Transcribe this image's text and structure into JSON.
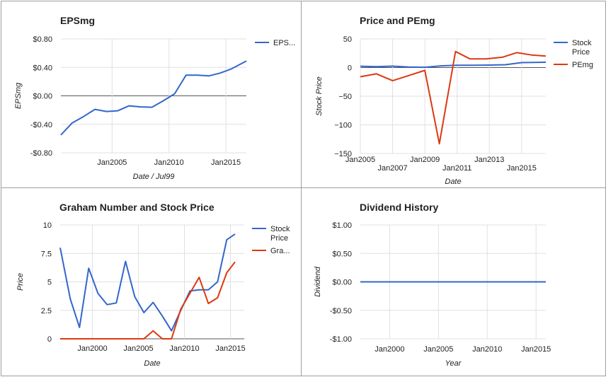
{
  "colors": {
    "blue": "#3366cc",
    "red": "#dc3912",
    "grid": "#e0e0e0",
    "zero": "#555555",
    "text": "#222222"
  },
  "chart_data": [
    {
      "type": "line",
      "title": "EPSmg",
      "xlabel": "Date / Jul99",
      "ylabel": "EPSmg",
      "ylim": [
        -0.8,
        0.8
      ],
      "yticks": [
        0.8,
        0.4,
        0.0,
        -0.4,
        -0.8
      ],
      "ytick_labels": [
        "$0.80",
        "$0.40",
        "$0.00",
        "-$0.40",
        "-$0.80"
      ],
      "xlim": [
        2000.5,
        2016.8
      ],
      "xticks": [
        2005,
        2010,
        2015
      ],
      "xtick_labels": [
        "Jan2005",
        "Jan2010",
        "Jan2015"
      ],
      "legend": "right",
      "series": [
        {
          "name": "EPS...",
          "color": "#3366cc",
          "x": [
            2000.5,
            2001.5,
            2002.5,
            2003.5,
            2004.5,
            2005.5,
            2006.5,
            2007.5,
            2008.5,
            2009.5,
            2010.5,
            2011.5,
            2012.5,
            2013.5,
            2014.5,
            2015.5,
            2016.8
          ],
          "y": [
            -0.55,
            -0.38,
            -0.29,
            -0.19,
            -0.22,
            -0.21,
            -0.14,
            -0.155,
            -0.16,
            -0.07,
            0.03,
            0.29,
            0.29,
            0.28,
            0.32,
            0.38,
            0.49
          ]
        }
      ]
    },
    {
      "type": "line",
      "title": "Price and PEmg",
      "xlabel": "Date",
      "ylabel": "Stock Price",
      "ylim": [
        -150,
        50
      ],
      "yticks": [
        50,
        0,
        -50,
        -100,
        -150
      ],
      "ytick_labels": [
        "50",
        "0",
        "−50",
        "−100",
        "−150"
      ],
      "xlim": [
        2005,
        2016.5
      ],
      "xticks": [
        2005,
        2007,
        2009,
        2011,
        2013,
        2015
      ],
      "xtick_labels": [
        "Jan2005",
        "Jan2007",
        "Jan2009",
        "Jan2011",
        "Jan2013",
        "Jan2015"
      ],
      "legend": "right",
      "series": [
        {
          "name": "Stock Price",
          "color": "#3366cc",
          "x": [
            2005,
            2006,
            2007,
            2008,
            2009,
            2010,
            2011,
            2012,
            2013,
            2014,
            2015,
            2016.5
          ],
          "y": [
            2.3,
            1.5,
            2.5,
            1,
            0.5,
            3,
            4,
            4,
            4.3,
            5,
            8.7,
            9.2
          ]
        },
        {
          "name": "PEmg",
          "color": "#dc3912",
          "x": [
            2005,
            2006,
            2007,
            2008,
            2009,
            2009.9,
            2010.9,
            2011.8,
            2012.8,
            2013.8,
            2014.7,
            2015.6,
            2016.5
          ],
          "y": [
            -16,
            -11,
            -23,
            -14,
            -5,
            -133,
            28,
            15,
            15,
            18,
            26,
            22,
            20
          ]
        }
      ]
    },
    {
      "type": "line",
      "title": "Graham Number and Stock Price",
      "xlabel": "Date",
      "ylabel": "Price",
      "ylim": [
        0,
        10
      ],
      "yticks": [
        10,
        7.5,
        5,
        2.5,
        0
      ],
      "ytick_labels": [
        "10",
        "7.5",
        "5",
        "2.5",
        "0"
      ],
      "xlim": [
        1996.5,
        2016.5
      ],
      "xticks": [
        2000,
        2005,
        2010,
        2015
      ],
      "xtick_labels": [
        "Jan2000",
        "Jan2005",
        "Jan2010",
        "Jan2015"
      ],
      "legend": "right",
      "series": [
        {
          "name": "Stock Price",
          "color": "#3366cc",
          "x": [
            1996.5,
            1997.6,
            1998.6,
            1999.6,
            2000.6,
            2001.6,
            2002.6,
            2003.6,
            2004.6,
            2005.6,
            2006.6,
            2007.6,
            2008.6,
            2009.6,
            2010.6,
            2011.6,
            2012.6,
            2013.6,
            2014.6,
            2015.5
          ],
          "y": [
            8,
            3.5,
            1,
            6.2,
            4,
            3,
            3.15,
            6.8,
            3.7,
            2.3,
            3.2,
            2,
            0.7,
            2.5,
            4.2,
            4.3,
            4.3,
            5,
            8.7,
            9.2
          ]
        },
        {
          "name": "Gra...",
          "color": "#dc3912",
          "x": [
            1996.5,
            1997.6,
            1998.6,
            1999.6,
            2000.6,
            2001.6,
            2002.6,
            2003.6,
            2004.6,
            2005.6,
            2006.6,
            2007.6,
            2008.6,
            2009.6,
            2010.6,
            2011.6,
            2012.6,
            2013.6,
            2014.6,
            2015.5
          ],
          "y": [
            0,
            0,
            0,
            0,
            0,
            0,
            0,
            0,
            0,
            0,
            0.7,
            0,
            0,
            2.6,
            4,
            5.4,
            3.1,
            3.6,
            5.8,
            6.75
          ]
        }
      ]
    },
    {
      "type": "line",
      "title": "Dividend History",
      "xlabel": "Year",
      "ylabel": "Dividend",
      "ylim": [
        -1,
        1
      ],
      "yticks": [
        1,
        0.5,
        0,
        -0.5,
        -1
      ],
      "ytick_labels": [
        "$1.00",
        "$0.50",
        "$0.00",
        "-$0.50",
        "-$1.00"
      ],
      "xlim": [
        1997,
        2016
      ],
      "xticks": [
        2000,
        2005,
        2010,
        2015
      ],
      "xtick_labels": [
        "Jan2000",
        "Jan2005",
        "Jan2010",
        "Jan2015"
      ],
      "legend": "none",
      "series": [
        {
          "color": "#3366cc",
          "x": [
            1997,
            2016
          ],
          "y": [
            0,
            0
          ]
        }
      ]
    }
  ]
}
